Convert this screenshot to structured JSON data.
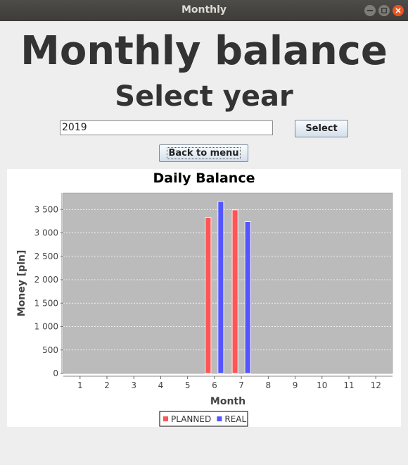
{
  "window": {
    "title": "Monthly"
  },
  "header": {
    "title": "Monthly balance",
    "subtitle": "Select year"
  },
  "form": {
    "year_value": "2019",
    "select_label": "Select",
    "back_label": "Back to menu"
  },
  "chart_data": {
    "type": "bar",
    "title": "Daily Balance",
    "xlabel": "Month",
    "ylabel": "Money [pln]",
    "categories": [
      "1",
      "2",
      "3",
      "4",
      "5",
      "6",
      "7",
      "8",
      "9",
      "10",
      "11",
      "12"
    ],
    "series": [
      {
        "name": "PLANNED",
        "color": "#ff5555",
        "values": [
          0,
          0,
          0,
          0,
          0,
          3330,
          3490,
          0,
          0,
          0,
          0,
          0
        ]
      },
      {
        "name": "REAL",
        "color": "#5555ff",
        "values": [
          0,
          0,
          0,
          0,
          0,
          3670,
          3240,
          0,
          0,
          0,
          0,
          0
        ]
      }
    ],
    "yticks": [
      {
        "value": 0,
        "label": "0"
      },
      {
        "value": 500,
        "label": "500"
      },
      {
        "value": 1000,
        "label": "1 000"
      },
      {
        "value": 1500,
        "label": "1 500"
      },
      {
        "value": 2000,
        "label": "2 000"
      },
      {
        "value": 2500,
        "label": "2 500"
      },
      {
        "value": 3000,
        "label": "3 000"
      },
      {
        "value": 3500,
        "label": "3 500"
      }
    ],
    "ylim": [
      0,
      3850
    ],
    "grid": true,
    "legend_position": "bottom",
    "plot_background": "#bbbbbb"
  }
}
